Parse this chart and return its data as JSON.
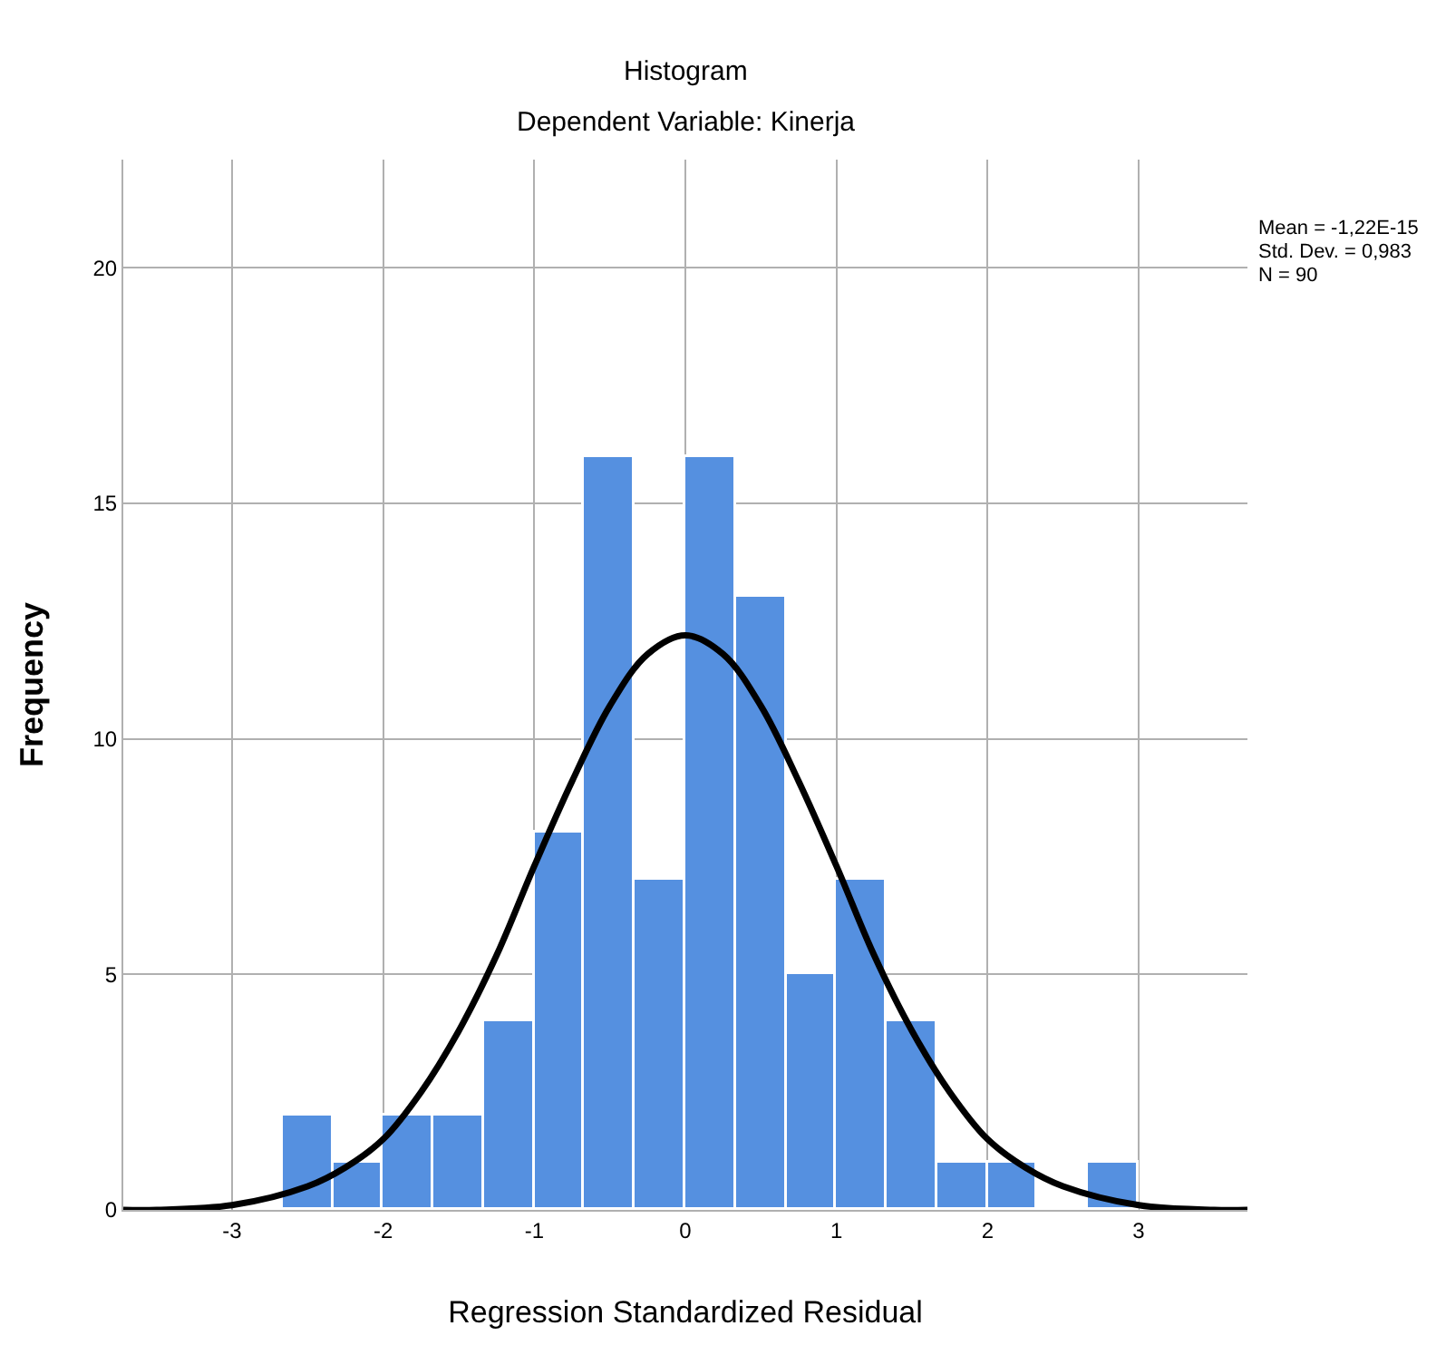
{
  "chart_data": {
    "type": "histogram",
    "title": "Histogram",
    "subtitle": "Dependent Variable: Kinerja",
    "xlabel": "Regression Standardized Residual",
    "ylabel": "Frequency",
    "bins": [
      -2.667,
      -2.333,
      -2.0,
      -1.667,
      -1.333,
      -1.0,
      -0.667,
      -0.333,
      0.0,
      0.333,
      0.667,
      1.0,
      1.333,
      1.667,
      2.0,
      2.333,
      2.667,
      3.0
    ],
    "values": [
      2,
      1,
      2,
      2,
      4,
      8,
      16,
      7,
      16,
      13,
      5,
      7,
      4,
      1,
      1,
      0,
      1
    ],
    "color": "#5590e0",
    "series": [
      {
        "type": "line",
        "color": "#000000",
        "x": [
          -3.72,
          -3.5,
          -3.0,
          -2.5,
          -2.25,
          -2.0,
          -1.75,
          -1.5,
          -1.25,
          -1.0,
          -0.75,
          -0.5,
          -0.25,
          0.0,
          0.25,
          0.5,
          0.75,
          1.0,
          1.25,
          1.5,
          1.75,
          2.0,
          2.25,
          2.5,
          3.0,
          3.5,
          3.72
        ],
        "values": [
          0.0,
          0.0,
          0.1,
          0.5,
          0.9,
          1.5,
          2.5,
          3.8,
          5.4,
          7.3,
          9.1,
          10.7,
          11.8,
          12.2,
          11.8,
          10.7,
          9.1,
          7.3,
          5.4,
          3.8,
          2.5,
          1.5,
          0.9,
          0.5,
          0.1,
          0.0,
          0.0
        ]
      }
    ],
    "xlim": [
      -3.72,
      3.72
    ],
    "ylim": [
      0,
      22.3
    ],
    "xticks": [
      -3,
      -2,
      -1,
      0,
      1,
      2,
      3
    ],
    "yticks": [
      0,
      5,
      10,
      15,
      20
    ],
    "grid": true,
    "annotations": [
      "Mean = -1,22E-15",
      "Std. Dev. = 0,983",
      "N = 90"
    ]
  }
}
